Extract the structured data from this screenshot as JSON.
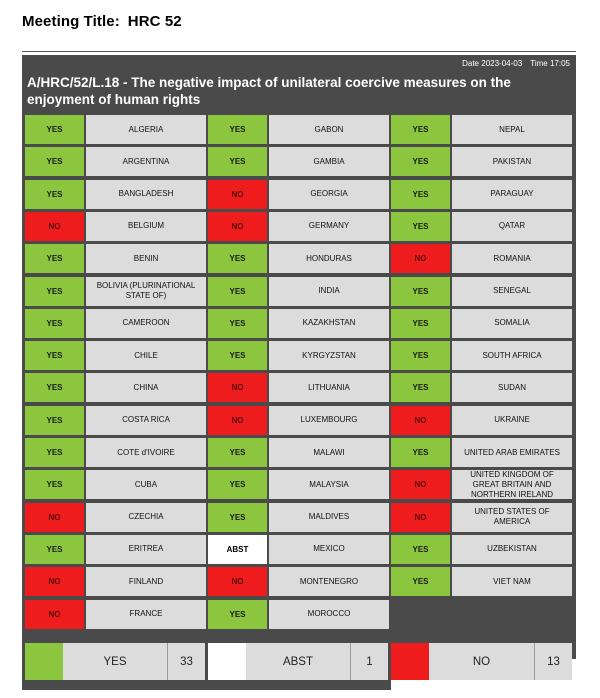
{
  "meeting": {
    "label": "Meeting Title:",
    "value": "HRC 52"
  },
  "header": {
    "date_label": "Date",
    "date": "2023-04-03",
    "time_label": "Time",
    "time": "17:05",
    "resolution_title": "A/HRC/52/L.18 - The negative impact of unilateral coercive measures on the enjoyment of human rights"
  },
  "colors": {
    "yes": "#8cc63f",
    "no": "#ee1c1c",
    "abst": "#ffffff",
    "panel": "#4a4a4a",
    "cell": "#dcdcdc"
  },
  "columns": [
    [
      {
        "vote": "YES",
        "country": "ALGERIA"
      },
      {
        "vote": "YES",
        "country": "ARGENTINA"
      },
      {
        "vote": "YES",
        "country": "BANGLADESH"
      },
      {
        "vote": "NO",
        "country": "BELGIUM"
      },
      {
        "vote": "YES",
        "country": "BENIN"
      },
      {
        "vote": "YES",
        "country": "BOLIVIA (PLURINATIONAL STATE OF)"
      },
      {
        "vote": "YES",
        "country": "CAMEROON"
      },
      {
        "vote": "YES",
        "country": "CHILE"
      },
      {
        "vote": "YES",
        "country": "CHINA"
      },
      {
        "vote": "YES",
        "country": "COSTA RICA"
      },
      {
        "vote": "YES",
        "country": "COTE d'IVOIRE"
      },
      {
        "vote": "YES",
        "country": "CUBA"
      },
      {
        "vote": "NO",
        "country": "CZECHIA"
      },
      {
        "vote": "YES",
        "country": "ERITREA"
      },
      {
        "vote": "NO",
        "country": "FINLAND"
      },
      {
        "vote": "NO",
        "country": "FRANCE"
      }
    ],
    [
      {
        "vote": "YES",
        "country": "GABON"
      },
      {
        "vote": "YES",
        "country": "GAMBIA"
      },
      {
        "vote": "NO",
        "country": "GEORGIA"
      },
      {
        "vote": "NO",
        "country": "GERMANY"
      },
      {
        "vote": "YES",
        "country": "HONDURAS"
      },
      {
        "vote": "YES",
        "country": "INDIA"
      },
      {
        "vote": "YES",
        "country": "KAZAKHSTAN"
      },
      {
        "vote": "YES",
        "country": "KYRGYZSTAN"
      },
      {
        "vote": "NO",
        "country": "LITHUANIA"
      },
      {
        "vote": "NO",
        "country": "LUXEMBOURG"
      },
      {
        "vote": "YES",
        "country": "MALAWI"
      },
      {
        "vote": "YES",
        "country": "MALAYSIA"
      },
      {
        "vote": "YES",
        "country": "MALDIVES"
      },
      {
        "vote": "ABST",
        "country": "MEXICO"
      },
      {
        "vote": "NO",
        "country": "MONTENEGRO"
      },
      {
        "vote": "YES",
        "country": "MOROCCO"
      }
    ],
    [
      {
        "vote": "YES",
        "country": "NEPAL"
      },
      {
        "vote": "YES",
        "country": "PAKISTAN"
      },
      {
        "vote": "YES",
        "country": "PARAGUAY"
      },
      {
        "vote": "YES",
        "country": "QATAR"
      },
      {
        "vote": "NO",
        "country": "ROMANIA"
      },
      {
        "vote": "YES",
        "country": "SENEGAL"
      },
      {
        "vote": "YES",
        "country": "SOMALIA"
      },
      {
        "vote": "YES",
        "country": "SOUTH AFRICA"
      },
      {
        "vote": "YES",
        "country": "SUDAN"
      },
      {
        "vote": "NO",
        "country": "UKRAINE"
      },
      {
        "vote": "YES",
        "country": "UNITED ARAB EMIRATES"
      },
      {
        "vote": "NO",
        "country": "UNITED KINGDOM OF GREAT BRITAIN AND NORTHERN IRELAND"
      },
      {
        "vote": "NO",
        "country": "UNITED STATES OF AMERICA"
      },
      {
        "vote": "YES",
        "country": "UZBEKISTAN"
      },
      {
        "vote": "YES",
        "country": "VIET NAM"
      }
    ]
  ],
  "summary": {
    "yes": {
      "label": "YES",
      "count": "33"
    },
    "abst": {
      "label": "ABST",
      "count": "1"
    },
    "no": {
      "label": "NO",
      "count": "13"
    }
  }
}
